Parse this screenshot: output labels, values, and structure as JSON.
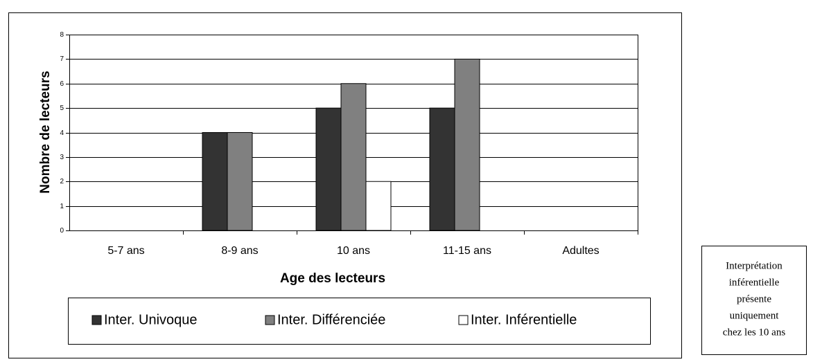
{
  "chart_data": {
    "type": "bar",
    "categories": [
      "5-7 ans",
      "8-9 ans",
      "10 ans",
      "11-15 ans",
      "Adultes"
    ],
    "series": [
      {
        "name": "Inter. Univoque",
        "color": "#333333",
        "values": [
          0,
          4,
          5,
          5,
          0
        ]
      },
      {
        "name": "Inter. Différenciée",
        "color": "#808080",
        "values": [
          0,
          4,
          6,
          7,
          0
        ]
      },
      {
        "name": "Inter. Inférentielle",
        "color": "#ffffff",
        "values": [
          0,
          0,
          2,
          0,
          0
        ]
      }
    ],
    "ylim": [
      0,
      8
    ],
    "yticks": [
      0,
      1,
      2,
      3,
      4,
      5,
      6,
      7,
      8
    ],
    "grid": true,
    "xlabel": "Age des lecteurs",
    "ylabel": "Nombre de lecteurs",
    "legend": "bottom"
  },
  "annotation": {
    "lines": [
      "Interprétation",
      "inférentielle",
      "présente",
      "uniquement",
      "chez les 10 ans"
    ]
  }
}
